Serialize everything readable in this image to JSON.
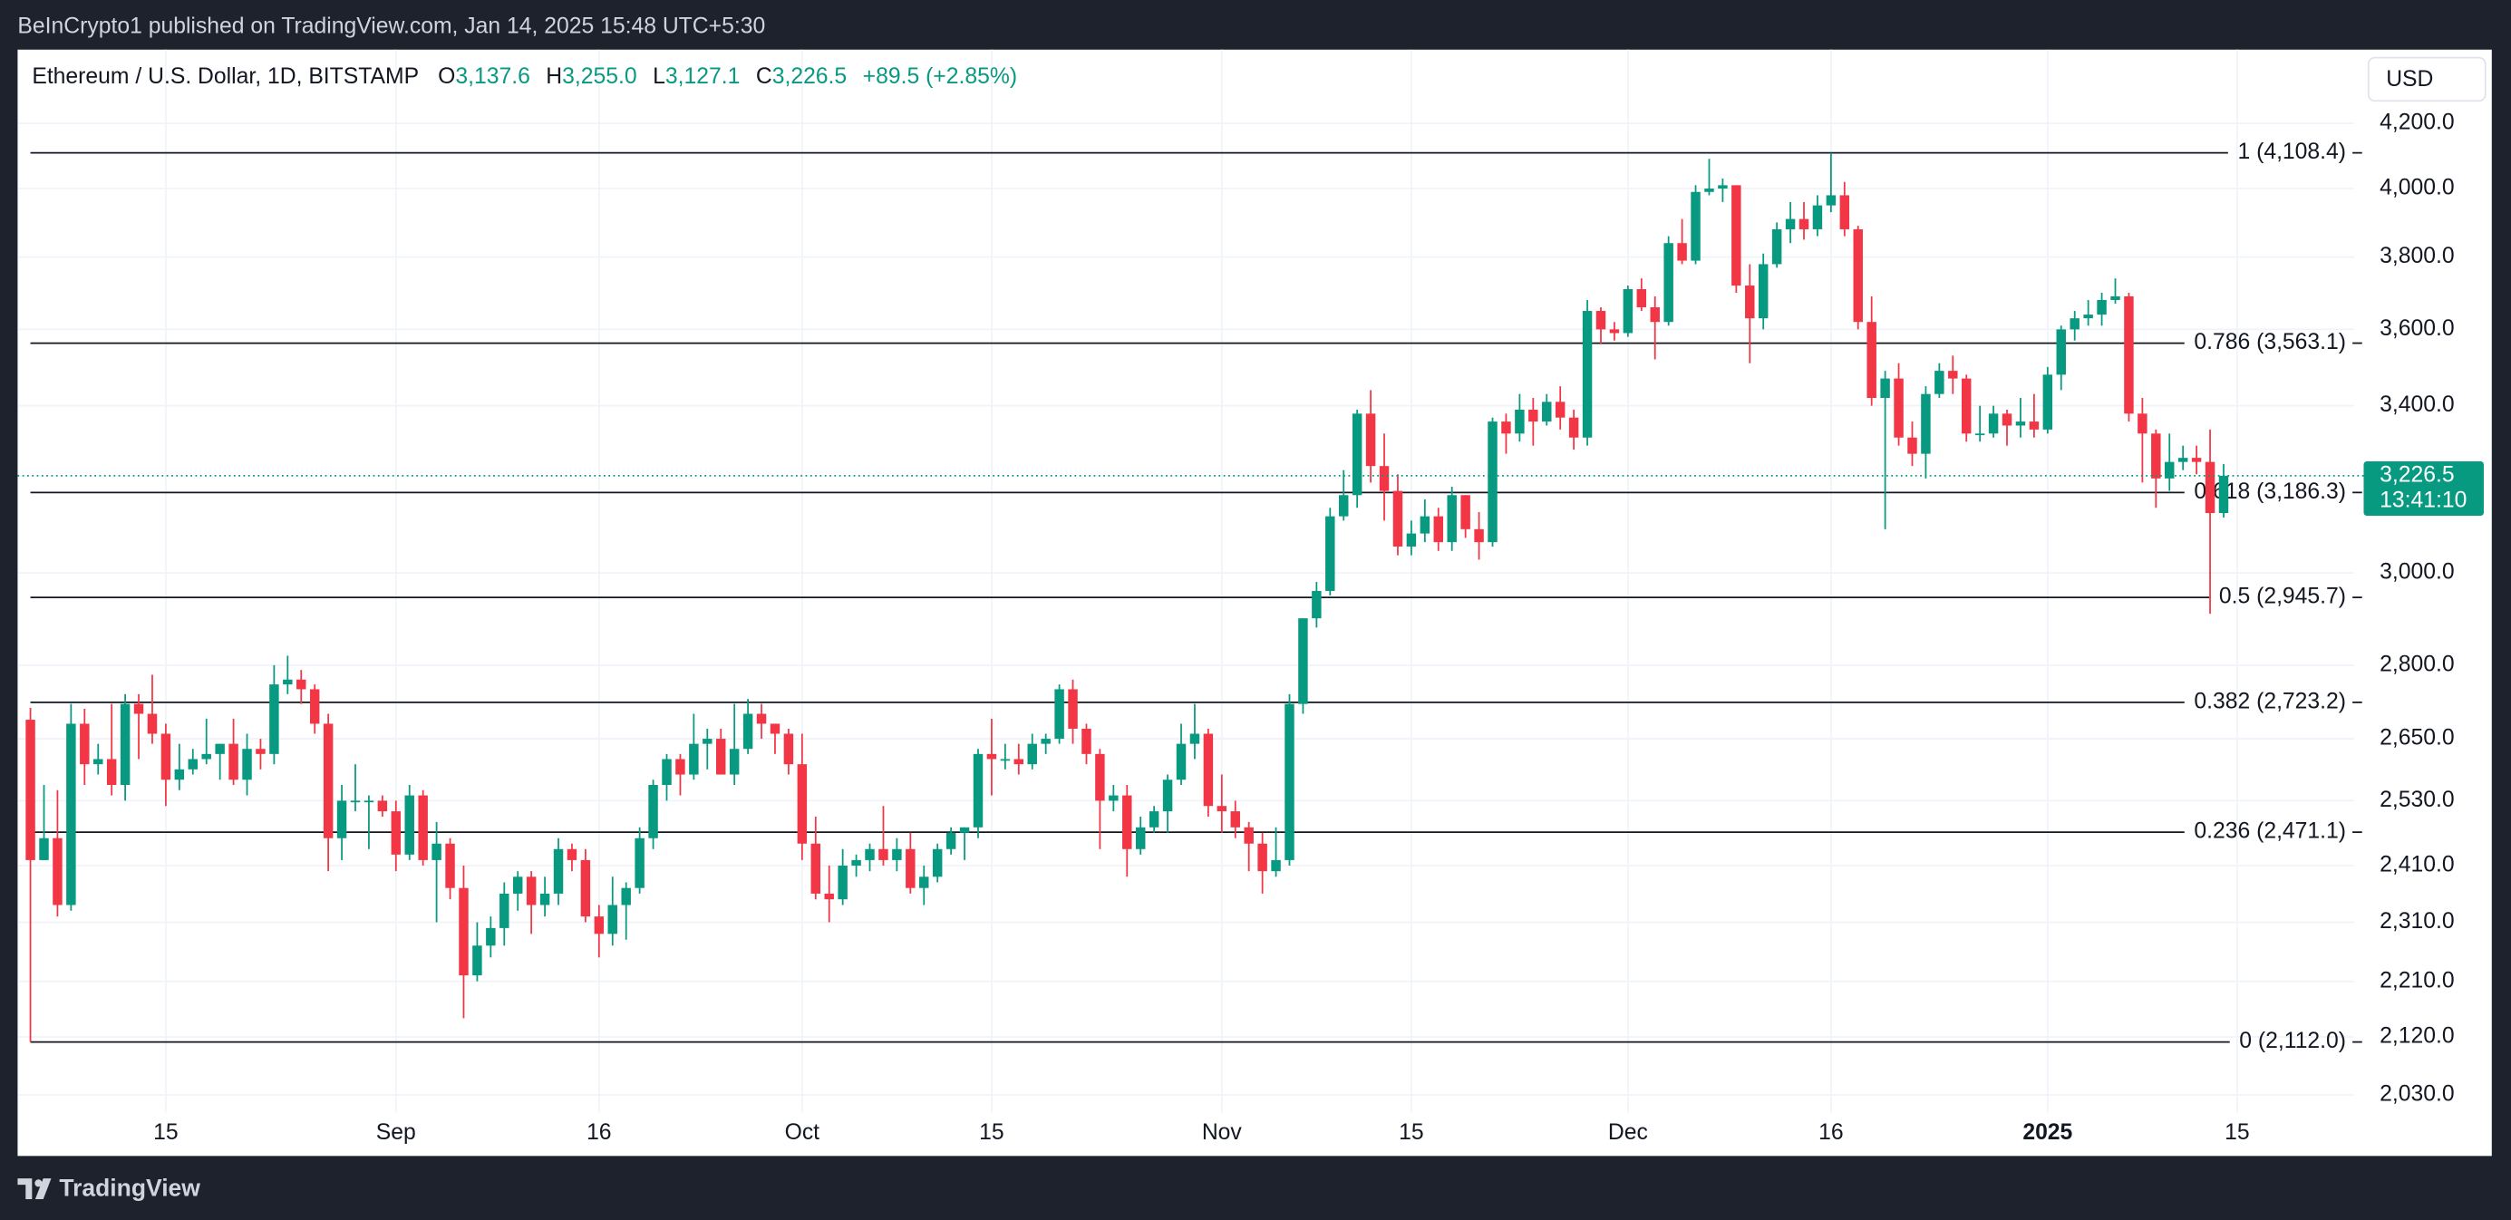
{
  "top_bar": "BeInCrypto1 published on TradingView.com, Jan 14, 2025 15:48 UTC+5:30",
  "footer": "TradingView",
  "currency_button": "USD",
  "legend": {
    "symbol": "Ethereum / U.S. Dollar, 1D, BITSTAMP",
    "o_key": "O",
    "o": "3,137.6",
    "h_key": "H",
    "h": "3,255.0",
    "l_key": "L",
    "l": "3,127.1",
    "c_key": "C",
    "c": "3,226.5",
    "change": "+89.5 (+2.85%)"
  },
  "chart_data": {
    "type": "candlestick",
    "log_scale": true,
    "grid": true,
    "up_color": "#089981",
    "down_color": "#f23645",
    "ylim": [
      1944,
      4433
    ],
    "yticks": [
      {
        "value": 4200,
        "label": "4,200.0"
      },
      {
        "value": 4000,
        "label": "4,000.0"
      },
      {
        "value": 3800,
        "label": "3,800.0"
      },
      {
        "value": 3600,
        "label": "3,600.0"
      },
      {
        "value": 3400,
        "label": "3,400.0"
      },
      {
        "value": 3000,
        "label": "3,000.0"
      },
      {
        "value": 2800,
        "label": "2,800.0"
      },
      {
        "value": 2650,
        "label": "2,650.0"
      },
      {
        "value": 2530,
        "label": "2,530.0"
      },
      {
        "value": 2410,
        "label": "2,410.0"
      },
      {
        "value": 2310,
        "label": "2,310.0"
      },
      {
        "value": 2210,
        "label": "2,210.0"
      },
      {
        "value": 2120,
        "label": "2,120.0"
      },
      {
        "value": 2030,
        "label": "2,030.0"
      }
    ],
    "fib_levels": [
      {
        "value": 4108.4,
        "label": "1 (4,108.4)"
      },
      {
        "value": 3563.1,
        "label": "0.786 (3,563.1)"
      },
      {
        "value": 3186.3,
        "label": "0.618 (3,186.3)"
      },
      {
        "value": 2945.7,
        "label": "0.5 (2,945.7)"
      },
      {
        "value": 2723.2,
        "label": "0.382 (2,723.2)"
      },
      {
        "value": 2471.1,
        "label": "0.236 (2,471.1)"
      },
      {
        "value": 2112.0,
        "label": "0 (2,112.0)"
      }
    ],
    "last_price": {
      "value": 3226.5,
      "label": "3,226.5"
    },
    "countdown": "13:41:10",
    "categories": [
      null,
      null,
      null,
      null,
      null,
      null,
      null,
      null,
      null,
      null,
      "15",
      null,
      null,
      null,
      null,
      null,
      null,
      null,
      null,
      null,
      null,
      null,
      null,
      null,
      null,
      null,
      null,
      "Sep",
      null,
      null,
      null,
      null,
      null,
      null,
      null,
      null,
      null,
      null,
      null,
      null,
      null,
      null,
      "16",
      null,
      null,
      null,
      null,
      null,
      null,
      null,
      null,
      null,
      null,
      null,
      null,
      null,
      null,
      "Oct",
      null,
      null,
      null,
      null,
      null,
      null,
      null,
      null,
      null,
      null,
      null,
      null,
      null,
      "15",
      null,
      null,
      null,
      null,
      null,
      null,
      null,
      null,
      null,
      null,
      null,
      null,
      null,
      null,
      null,
      null,
      "Nov",
      null,
      null,
      null,
      null,
      null,
      null,
      null,
      null,
      null,
      null,
      null,
      null,
      null,
      "15",
      null,
      null,
      null,
      null,
      null,
      null,
      null,
      null,
      null,
      null,
      null,
      null,
      null,
      null,
      null,
      "Dec",
      null,
      null,
      null,
      null,
      null,
      null,
      null,
      null,
      null,
      null,
      null,
      null,
      null,
      null,
      "16",
      null,
      null,
      null,
      null,
      null,
      null,
      null,
      null,
      null,
      null,
      null,
      null,
      null,
      null,
      null,
      "2025",
      null,
      null,
      null,
      null,
      null,
      null,
      null,
      null,
      null,
      null,
      null,
      null,
      null,
      "15"
    ],
    "ohlc": [
      [
        2688,
        2712,
        2112,
        2420
      ],
      [
        2420,
        2560,
        2420,
        2460
      ],
      [
        2460,
        2550,
        2320,
        2340
      ],
      [
        2340,
        2720,
        2330,
        2680
      ],
      [
        2680,
        2710,
        2560,
        2600
      ],
      [
        2600,
        2640,
        2580,
        2610
      ],
      [
        2610,
        2720,
        2540,
        2560
      ],
      [
        2560,
        2740,
        2530,
        2720
      ],
      [
        2720,
        2740,
        2610,
        2700
      ],
      [
        2700,
        2780,
        2640,
        2660
      ],
      [
        2660,
        2680,
        2520,
        2570
      ],
      [
        2570,
        2640,
        2550,
        2590
      ],
      [
        2590,
        2630,
        2580,
        2610
      ],
      [
        2610,
        2690,
        2600,
        2620
      ],
      [
        2620,
        2640,
        2570,
        2640
      ],
      [
        2640,
        2690,
        2560,
        2570
      ],
      [
        2570,
        2660,
        2540,
        2630
      ],
      [
        2630,
        2650,
        2590,
        2620
      ],
      [
        2620,
        2800,
        2600,
        2760
      ],
      [
        2760,
        2820,
        2740,
        2770
      ],
      [
        2770,
        2790,
        2720,
        2750
      ],
      [
        2750,
        2760,
        2660,
        2680
      ],
      [
        2680,
        2700,
        2400,
        2460
      ],
      [
        2460,
        2560,
        2420,
        2530
      ],
      [
        2530,
        2600,
        2510,
        2530
      ],
      [
        2530,
        2540,
        2440,
        2530
      ],
      [
        2530,
        2540,
        2500,
        2510
      ],
      [
        2510,
        2530,
        2400,
        2430
      ],
      [
        2430,
        2560,
        2420,
        2540
      ],
      [
        2540,
        2550,
        2410,
        2420
      ],
      [
        2420,
        2490,
        2310,
        2450
      ],
      [
        2450,
        2460,
        2350,
        2370
      ],
      [
        2370,
        2410,
        2150,
        2220
      ],
      [
        2220,
        2310,
        2210,
        2270
      ],
      [
        2270,
        2320,
        2250,
        2300
      ],
      [
        2300,
        2380,
        2270,
        2360
      ],
      [
        2360,
        2400,
        2330,
        2390
      ],
      [
        2390,
        2400,
        2290,
        2340
      ],
      [
        2340,
        2390,
        2320,
        2360
      ],
      [
        2360,
        2460,
        2340,
        2440
      ],
      [
        2440,
        2450,
        2400,
        2420
      ],
      [
        2420,
        2440,
        2310,
        2320
      ],
      [
        2320,
        2340,
        2250,
        2290
      ],
      [
        2290,
        2390,
        2270,
        2340
      ],
      [
        2340,
        2380,
        2280,
        2370
      ],
      [
        2370,
        2480,
        2360,
        2460
      ],
      [
        2460,
        2570,
        2440,
        2560
      ],
      [
        2560,
        2620,
        2530,
        2610
      ],
      [
        2610,
        2620,
        2540,
        2580
      ],
      [
        2580,
        2700,
        2570,
        2640
      ],
      [
        2640,
        2670,
        2590,
        2650
      ],
      [
        2650,
        2670,
        2590,
        2580
      ],
      [
        2580,
        2720,
        2560,
        2630
      ],
      [
        2630,
        2730,
        2620,
        2700
      ],
      [
        2700,
        2720,
        2650,
        2680
      ],
      [
        2680,
        2680,
        2620,
        2660
      ],
      [
        2660,
        2670,
        2580,
        2600
      ],
      [
        2600,
        2660,
        2420,
        2450
      ],
      [
        2450,
        2500,
        2350,
        2360
      ],
      [
        2360,
        2410,
        2310,
        2350
      ],
      [
        2350,
        2440,
        2340,
        2410
      ],
      [
        2410,
        2430,
        2390,
        2420
      ],
      [
        2420,
        2450,
        2400,
        2440
      ],
      [
        2440,
        2520,
        2410,
        2420
      ],
      [
        2420,
        2460,
        2400,
        2440
      ],
      [
        2440,
        2470,
        2360,
        2370
      ],
      [
        2370,
        2410,
        2340,
        2390
      ],
      [
        2390,
        2450,
        2380,
        2440
      ],
      [
        2440,
        2480,
        2430,
        2470
      ],
      [
        2470,
        2480,
        2420,
        2480
      ],
      [
        2480,
        2630,
        2460,
        2620
      ],
      [
        2620,
        2690,
        2540,
        2610
      ],
      [
        2610,
        2640,
        2590,
        2610
      ],
      [
        2610,
        2640,
        2580,
        2600
      ],
      [
        2600,
        2660,
        2590,
        2640
      ],
      [
        2640,
        2660,
        2620,
        2650
      ],
      [
        2650,
        2760,
        2640,
        2750
      ],
      [
        2750,
        2770,
        2640,
        2670
      ],
      [
        2670,
        2680,
        2600,
        2620
      ],
      [
        2620,
        2630,
        2440,
        2530
      ],
      [
        2530,
        2560,
        2510,
        2540
      ],
      [
        2540,
        2560,
        2390,
        2440
      ],
      [
        2440,
        2500,
        2430,
        2480
      ],
      [
        2480,
        2520,
        2470,
        2510
      ],
      [
        2510,
        2580,
        2470,
        2570
      ],
      [
        2570,
        2680,
        2560,
        2640
      ],
      [
        2640,
        2720,
        2610,
        2660
      ],
      [
        2660,
        2670,
        2500,
        2520
      ],
      [
        2520,
        2580,
        2470,
        2510
      ],
      [
        2510,
        2530,
        2460,
        2480
      ],
      [
        2480,
        2490,
        2400,
        2450
      ],
      [
        2450,
        2470,
        2360,
        2400
      ],
      [
        2400,
        2480,
        2390,
        2420
      ],
      [
        2420,
        2740,
        2410,
        2720
      ],
      [
        2720,
        2900,
        2700,
        2900
      ],
      [
        2900,
        2980,
        2880,
        2960
      ],
      [
        2960,
        3150,
        2950,
        3130
      ],
      [
        3130,
        3240,
        3120,
        3180
      ],
      [
        3180,
        3390,
        3150,
        3380
      ],
      [
        3380,
        3440,
        3210,
        3250
      ],
      [
        3250,
        3330,
        3120,
        3190
      ],
      [
        3190,
        3230,
        3040,
        3060
      ],
      [
        3060,
        3120,
        3040,
        3090
      ],
      [
        3090,
        3170,
        3070,
        3130
      ],
      [
        3130,
        3150,
        3050,
        3070
      ],
      [
        3070,
        3200,
        3050,
        3180
      ],
      [
        3180,
        3180,
        3080,
        3100
      ],
      [
        3100,
        3140,
        3030,
        3070
      ],
      [
        3070,
        3370,
        3060,
        3360
      ],
      [
        3360,
        3380,
        3280,
        3330
      ],
      [
        3330,
        3430,
        3310,
        3390
      ],
      [
        3390,
        3420,
        3300,
        3360
      ],
      [
        3360,
        3430,
        3350,
        3410
      ],
      [
        3410,
        3450,
        3340,
        3370
      ],
      [
        3370,
        3390,
        3290,
        3320
      ],
      [
        3320,
        3680,
        3300,
        3650
      ],
      [
        3650,
        3660,
        3560,
        3600
      ],
      [
        3600,
        3620,
        3570,
        3590
      ],
      [
        3590,
        3720,
        3580,
        3710
      ],
      [
        3710,
        3740,
        3650,
        3660
      ],
      [
        3660,
        3690,
        3520,
        3620
      ],
      [
        3620,
        3860,
        3610,
        3840
      ],
      [
        3840,
        3910,
        3780,
        3790
      ],
      [
        3790,
        4010,
        3780,
        3990
      ],
      [
        3990,
        4090,
        3980,
        4000
      ],
      [
        4000,
        4030,
        3960,
        4010
      ],
      [
        4010,
        4010,
        3700,
        3720
      ],
      [
        3720,
        3780,
        3510,
        3630
      ],
      [
        3630,
        3810,
        3600,
        3780
      ],
      [
        3780,
        3900,
        3770,
        3880
      ],
      [
        3880,
        3960,
        3840,
        3910
      ],
      [
        3910,
        3960,
        3850,
        3880
      ],
      [
        3880,
        3980,
        3860,
        3950
      ],
      [
        3950,
        4108,
        3930,
        3980
      ],
      [
        3980,
        4020,
        3860,
        3880
      ],
      [
        3880,
        3890,
        3600,
        3620
      ],
      [
        3620,
        3690,
        3400,
        3420
      ],
      [
        3420,
        3490,
        3100,
        3470
      ],
      [
        3470,
        3510,
        3300,
        3320
      ],
      [
        3320,
        3360,
        3250,
        3280
      ],
      [
        3280,
        3450,
        3220,
        3430
      ],
      [
        3430,
        3510,
        3420,
        3490
      ],
      [
        3490,
        3530,
        3430,
        3470
      ],
      [
        3470,
        3480,
        3310,
        3330
      ],
      [
        3330,
        3400,
        3310,
        3330
      ],
      [
        3330,
        3400,
        3320,
        3380
      ],
      [
        3380,
        3390,
        3300,
        3350
      ],
      [
        3350,
        3420,
        3320,
        3360
      ],
      [
        3360,
        3430,
        3320,
        3340
      ],
      [
        3340,
        3500,
        3330,
        3480
      ],
      [
        3480,
        3610,
        3440,
        3600
      ],
      [
        3600,
        3650,
        3570,
        3630
      ],
      [
        3630,
        3680,
        3610,
        3640
      ],
      [
        3640,
        3700,
        3610,
        3680
      ],
      [
        3680,
        3740,
        3670,
        3690
      ],
      [
        3690,
        3700,
        3360,
        3380
      ],
      [
        3380,
        3420,
        3210,
        3330
      ],
      [
        3330,
        3340,
        3150,
        3220
      ],
      [
        3220,
        3330,
        3190,
        3260
      ],
      [
        3260,
        3300,
        3240,
        3270
      ],
      [
        3270,
        3300,
        3230,
        3260
      ],
      [
        3260,
        3340,
        2910,
        3137.6
      ],
      [
        3137.6,
        3255.0,
        3127.1,
        3226.5
      ],
      null
    ]
  }
}
